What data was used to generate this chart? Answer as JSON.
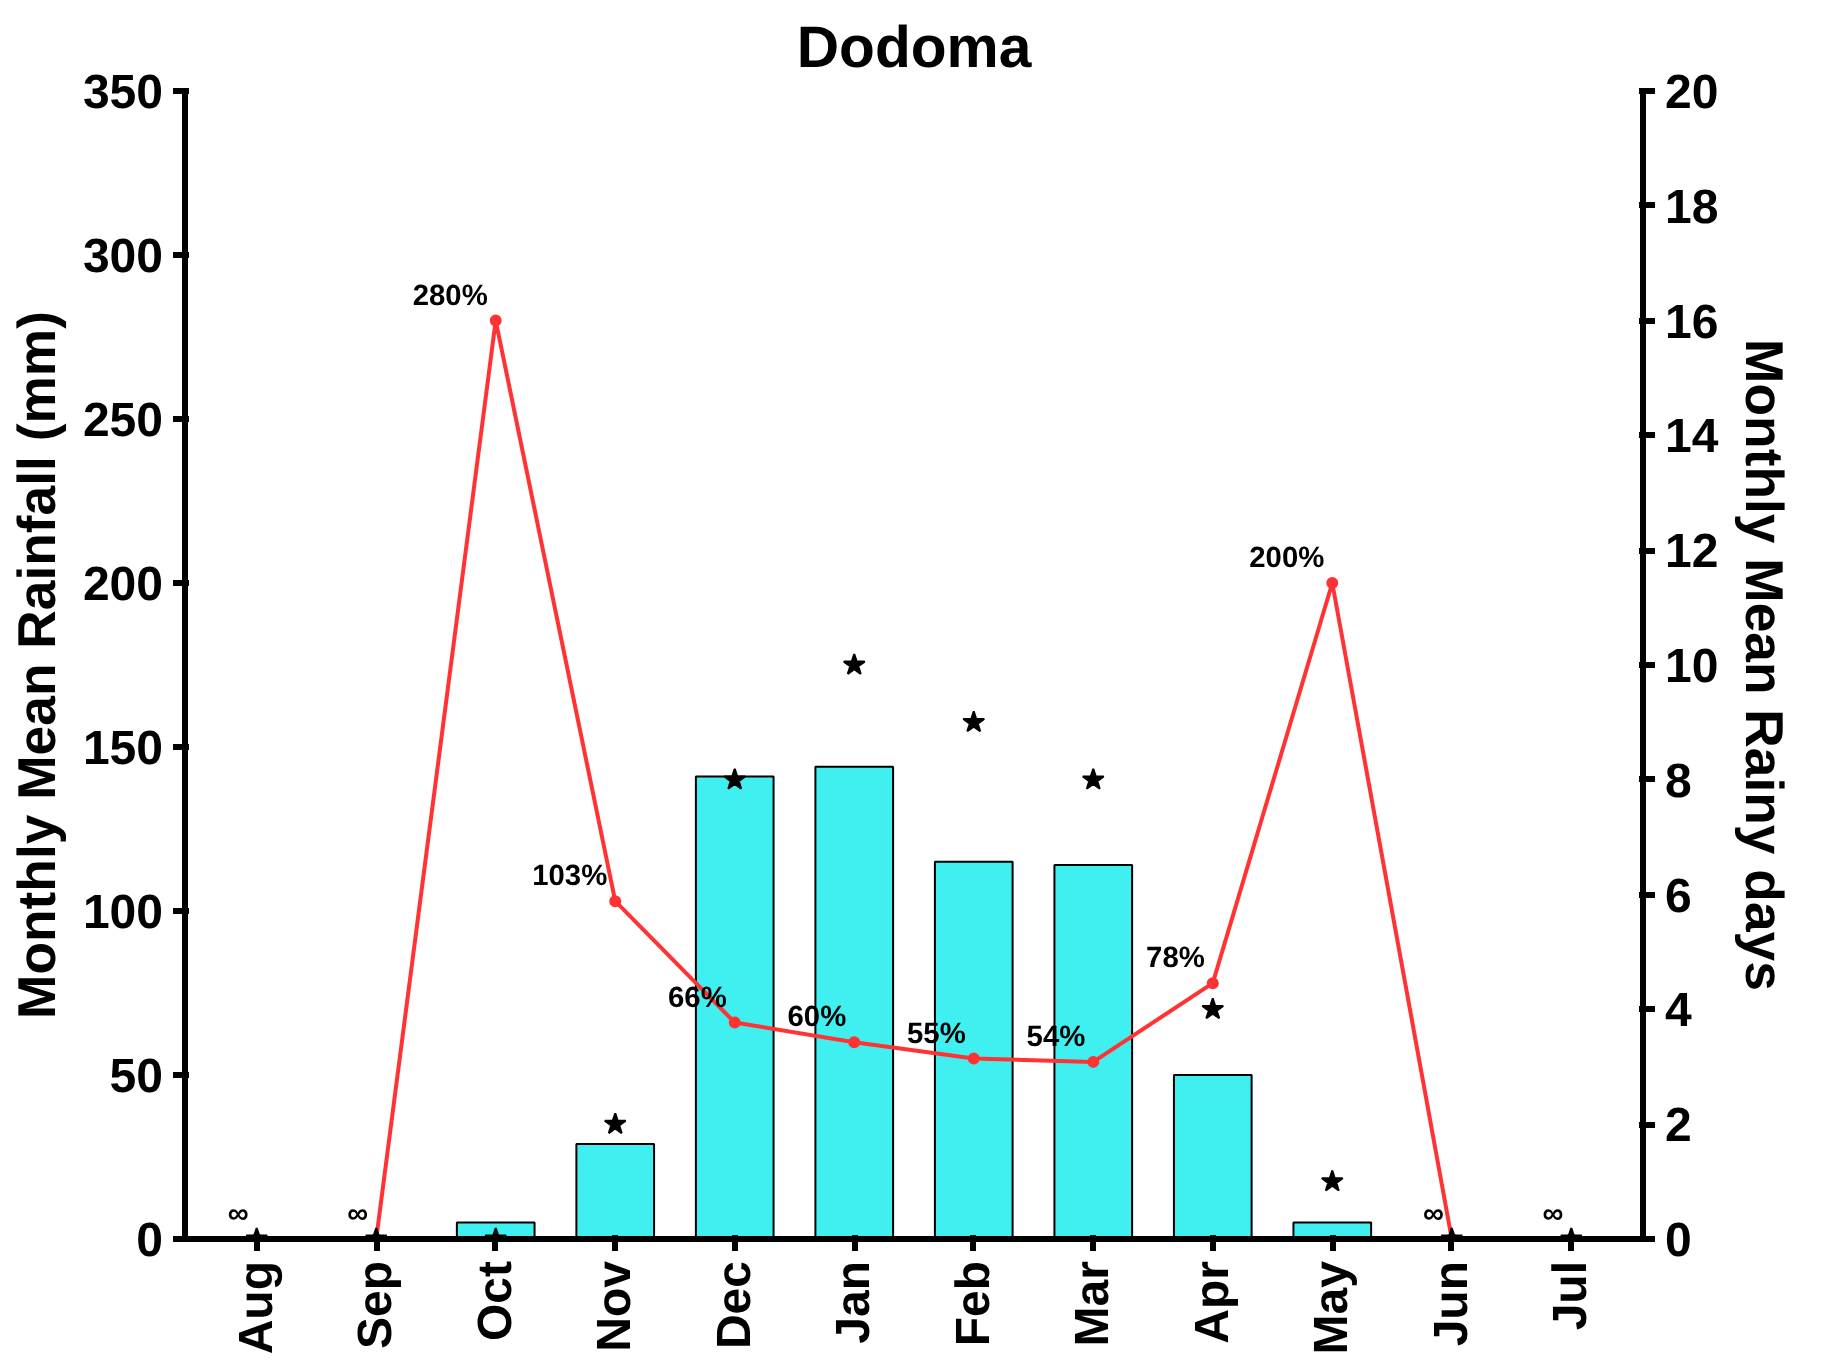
{
  "chart_data": {
    "type": "bar",
    "title": "Dodoma",
    "ylabel": "Monthly Mean Rainfall (mm)",
    "y2label": "Monthly Mean Rainy days",
    "categories": [
      "Aug",
      "Sep",
      "Oct",
      "Nov",
      "Dec",
      "Jan",
      "Feb",
      "Mar",
      "Apr",
      "May",
      "Jun",
      "Jul"
    ],
    "ylim": [
      0,
      350
    ],
    "yticks": [
      0,
      50,
      100,
      150,
      200,
      250,
      300,
      350
    ],
    "y2lim": [
      0,
      20
    ],
    "y2ticks": [
      0,
      2,
      4,
      6,
      8,
      10,
      12,
      14,
      16,
      18,
      20
    ],
    "grid": false,
    "series": [
      {
        "color": "#40f0f0",
        "values": [
          0,
          0,
          5,
          29,
          141,
          144,
          115,
          114,
          50,
          5,
          0,
          0
        ]
      },
      {
        "type": "line",
        "color": "#ff3333",
        "marker": "circle",
        "values": [
          0,
          0,
          280,
          103,
          66,
          60,
          55,
          54,
          78,
          200,
          0,
          0
        ],
        "value_labels": [
          "∞",
          "∞",
          "280%",
          "103%",
          "66%",
          "60%",
          "55%",
          "54%",
          "78%",
          "200%",
          "∞",
          "∞"
        ]
      },
      {
        "type": "scatter",
        "axis": "y2",
        "color": "#000000",
        "marker": "star",
        "values": [
          0,
          0,
          0,
          2,
          8,
          10,
          9,
          8,
          4,
          1,
          0,
          0
        ]
      }
    ]
  }
}
